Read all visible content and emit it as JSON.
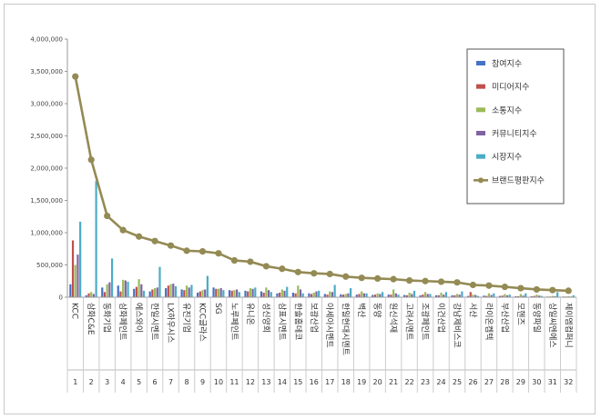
{
  "chart_data": {
    "type": "bar",
    "title": "",
    "xlabel": "",
    "ylabel": "",
    "ylim": [
      0,
      4000000
    ],
    "y_ticks": [
      0,
      500000,
      1000000,
      1500000,
      2000000,
      2500000,
      3000000,
      3500000,
      4000000
    ],
    "y_tick_labels": [
      "0",
      "500,000",
      "1,000,000",
      "1,500,000",
      "2,000,000",
      "2,500,000",
      "3,000,000",
      "3,500,000",
      "4,000,000"
    ],
    "grid": false,
    "legend_position": "top-right",
    "ranks": [
      "1",
      "2",
      "3",
      "4",
      "5",
      "6",
      "7",
      "8",
      "9",
      "10",
      "11",
      "12",
      "13",
      "14",
      "15",
      "16",
      "17",
      "18",
      "19",
      "20",
      "21",
      "22",
      "23",
      "24",
      "25",
      "26",
      "27",
      "28",
      "29",
      "30",
      "31",
      "32"
    ],
    "categories": [
      "KCC",
      "삼화C&E",
      "동화기업",
      "삼화페인트",
      "에스와이",
      "한일시멘트",
      "LX하우시스",
      "유진기업",
      "KCC글라스",
      "SG",
      "노루페인트",
      "유니온",
      "성신양회",
      "삼표시멘트",
      "한솔홈데코",
      "보광산업",
      "아세아시멘트",
      "한일현대시멘트",
      "벽산",
      "동양",
      "원신석재",
      "고려시멘트",
      "조광페인트",
      "이건산업",
      "강남제비스코",
      "서산",
      "라이온켐텍",
      "부산산업",
      "모헨즈",
      "동양파일",
      "상일씨엔에스",
      "제이엠컴퍼니"
    ],
    "series": [
      {
        "name": "참여지수",
        "color": "#4472c4",
        "kind": "bar",
        "values": [
          200000,
          30000,
          150000,
          180000,
          130000,
          90000,
          140000,
          120000,
          70000,
          150000,
          110000,
          100000,
          90000,
          60000,
          70000,
          60000,
          50000,
          45000,
          40000,
          35000,
          40000,
          35000,
          30000,
          30000,
          30000,
          20000,
          25000,
          20000,
          15000,
          15000,
          10000,
          10000
        ]
      },
      {
        "name": "미디어지수",
        "color": "#c0504d",
        "kind": "bar",
        "values": [
          880000,
          60000,
          80000,
          90000,
          160000,
          120000,
          180000,
          110000,
          90000,
          130000,
          100000,
          90000,
          70000,
          70000,
          60000,
          50000,
          40000,
          40000,
          50000,
          40000,
          40000,
          30000,
          40000,
          30000,
          30000,
          80000,
          20000,
          25000,
          15000,
          20000,
          10000,
          10000
        ]
      },
      {
        "name": "소통지수",
        "color": "#9bbb59",
        "kind": "bar",
        "values": [
          500000,
          80000,
          200000,
          270000,
          280000,
          140000,
          200000,
          180000,
          110000,
          130000,
          110000,
          140000,
          150000,
          120000,
          180000,
          70000,
          90000,
          50000,
          90000,
          60000,
          120000,
          70000,
          80000,
          70000,
          50000,
          40000,
          60000,
          50000,
          50000,
          40000,
          20000,
          15000
        ]
      },
      {
        "name": "커뮤니티지수",
        "color": "#8064a2",
        "kind": "bar",
        "values": [
          660000,
          50000,
          230000,
          260000,
          200000,
          150000,
          210000,
          150000,
          120000,
          140000,
          120000,
          130000,
          110000,
          100000,
          120000,
          90000,
          80000,
          60000,
          60000,
          50000,
          60000,
          50000,
          50000,
          40000,
          40000,
          35000,
          35000,
          30000,
          25000,
          25000,
          15000,
          10000
        ]
      },
      {
        "name": "시장지수",
        "color": "#4bacc6",
        "kind": "bar",
        "values": [
          1170000,
          1800000,
          600000,
          240000,
          100000,
          470000,
          170000,
          190000,
          330000,
          110000,
          80000,
          150000,
          80000,
          160000,
          60000,
          100000,
          190000,
          140000,
          60000,
          80000,
          40000,
          100000,
          50000,
          80000,
          90000,
          20000,
          60000,
          40000,
          60000,
          20000,
          80000,
          30000
        ]
      },
      {
        "name": "브랜드평판지수",
        "color": "#948a54",
        "kind": "line",
        "values": [
          3420000,
          2130000,
          1260000,
          1040000,
          940000,
          870000,
          800000,
          720000,
          710000,
          680000,
          570000,
          550000,
          480000,
          440000,
          390000,
          370000,
          360000,
          320000,
          300000,
          290000,
          280000,
          260000,
          250000,
          240000,
          230000,
          190000,
          180000,
          160000,
          140000,
          120000,
          110000,
          100000
        ]
      }
    ]
  }
}
